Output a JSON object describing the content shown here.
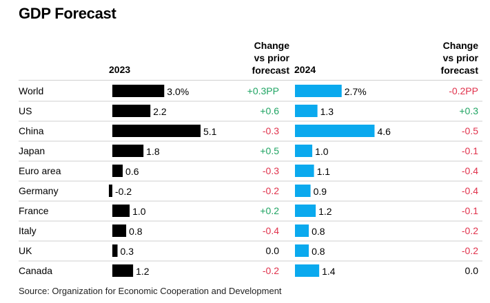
{
  "title": "GDP Forecast",
  "source": "Source: Organization for Economic Cooperation and Development",
  "headers": {
    "col2023": "2023",
    "col2024": "2024",
    "change": [
      "Change",
      "vs prior",
      "forecast"
    ]
  },
  "colors": {
    "bar2023": "#000000",
    "bar2024": "#0aa9ee",
    "positive": "#1fa463",
    "negative": "#e0314b",
    "neutral": "#000000",
    "row_divider": "#cfcfcf"
  },
  "chart_data": {
    "type": "bar",
    "title": "GDP Forecast",
    "categories": [
      "World",
      "US",
      "China",
      "Japan",
      "Euro area",
      "Germany",
      "France",
      "Italy",
      "UK",
      "Canada"
    ],
    "series": [
      {
        "name": "2023",
        "values": [
          3.0,
          2.2,
          5.1,
          1.8,
          0.6,
          -0.2,
          1.0,
          0.8,
          0.3,
          1.2
        ],
        "labels": [
          "3.0%",
          "2.2",
          "5.1",
          "1.8",
          "0.6",
          "-0.2",
          "1.0",
          "0.8",
          "0.3",
          "1.2"
        ],
        "change_labels": [
          "+0.3PP",
          "+0.6",
          "-0.3",
          "+0.5",
          "-0.3",
          "-0.2",
          "+0.2",
          "-0.4",
          "0.0",
          "-0.2"
        ]
      },
      {
        "name": "2024",
        "values": [
          2.7,
          1.3,
          4.6,
          1.0,
          1.1,
          0.9,
          1.2,
          0.8,
          0.8,
          1.4
        ],
        "labels": [
          "2.7%",
          "1.3",
          "4.6",
          "1.0",
          "1.1",
          "0.9",
          "1.2",
          "0.8",
          "0.8",
          "1.4"
        ],
        "change_labels": [
          "-0.2PP",
          "+0.3",
          "-0.5",
          "-0.1",
          "-0.4",
          "-0.4",
          "-0.1",
          "-0.2",
          "-0.2",
          "0.0"
        ]
      }
    ]
  }
}
